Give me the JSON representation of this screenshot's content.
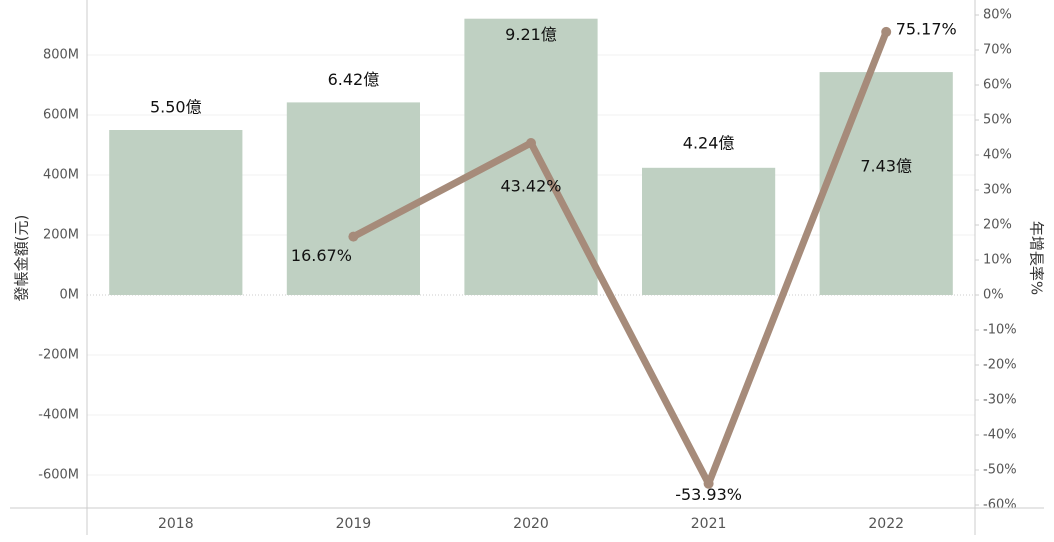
{
  "chart_data": {
    "type": "bar-line",
    "categories": [
      "2018",
      "2019",
      "2020",
      "2021",
      "2022"
    ],
    "y_label": "發帳金額(元)",
    "y2_label": "年增長率%",
    "series": [
      {
        "type": "bar",
        "color": "#bfd0c2",
        "values": [
          550000000,
          642000000,
          921000000,
          424000000,
          743000000
        ],
        "value_labels": [
          "5.50億",
          "6.42億",
          "9.21億",
          "4.24億",
          "7.43億"
        ]
      },
      {
        "type": "line",
        "axis": "y2",
        "color": "#a68b7a",
        "values": [
          null,
          16.67,
          43.42,
          -53.93,
          75.17
        ],
        "value_labels": [
          null,
          "16.67%",
          "43.42%",
          "-53.93%",
          "75.17%"
        ]
      }
    ],
    "ylim": [
      -710000000,
      956666667
    ],
    "yticks": [
      {
        "value": -600000000,
        "label": "-600M"
      },
      {
        "value": -400000000,
        "label": "-400M"
      },
      {
        "value": -200000000,
        "label": "-200M"
      },
      {
        "value": 0,
        "label": "0M"
      },
      {
        "value": 200000000,
        "label": "200M"
      },
      {
        "value": 400000000,
        "label": "400M"
      },
      {
        "value": 600000000,
        "label": "600M"
      },
      {
        "value": 800000000,
        "label": "800M"
      }
    ],
    "y2lim": [
      -60.86,
      82
    ],
    "y2ticks": [
      {
        "value": -60,
        "label": "-60%"
      },
      {
        "value": -50,
        "label": "-50%"
      },
      {
        "value": -40,
        "label": "-40%"
      },
      {
        "value": -30,
        "label": "-30%"
      },
      {
        "value": -20,
        "label": "-20%"
      },
      {
        "value": -10,
        "label": "-10%"
      },
      {
        "value": 0,
        "label": "0%"
      },
      {
        "value": 10,
        "label": "10%"
      },
      {
        "value": 20,
        "label": "20%"
      },
      {
        "value": 30,
        "label": "30%"
      },
      {
        "value": 40,
        "label": "40%"
      },
      {
        "value": 50,
        "label": "50%"
      },
      {
        "value": 60,
        "label": "60%"
      },
      {
        "value": 70,
        "label": "70%"
      },
      {
        "value": 80,
        "label": "80%"
      }
    ],
    "grid": true
  }
}
